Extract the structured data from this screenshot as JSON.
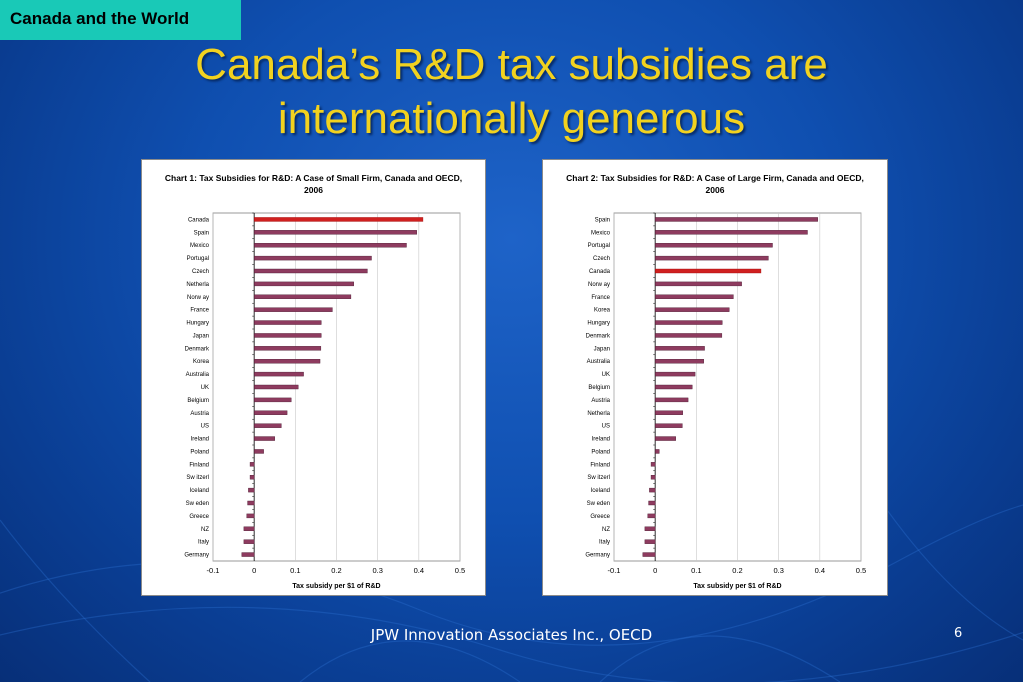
{
  "header": {
    "tag": "Canada and the World"
  },
  "slide": {
    "title_line1": "Canada’s R&D tax subsidies are",
    "title_line2": "internationally generous",
    "footer": "JPW Innovation Associates Inc., OECD",
    "page_number": "6"
  },
  "colors": {
    "bar": "#8e3b5f",
    "highlight": "#d0201f",
    "title": "#f2d21f",
    "tag_bg": "#19c9b7"
  },
  "chart_data": [
    {
      "type": "bar",
      "orientation": "horizontal",
      "title": "Chart 1: Tax Subsidies for R&D: A Case of Small Firm, Canada and OECD, 2006",
      "xlabel": "Tax subsidy per $1 of R&D",
      "xlim": [
        -0.1,
        0.5
      ],
      "xticks": [
        "-0.1",
        "0",
        "0.1",
        "0.2",
        "0.3",
        "0.4",
        "0.5"
      ],
      "grid": true,
      "highlight": "Canada",
      "categories": [
        "Canada",
        "Spain",
        "Mexico",
        "Portugal",
        "Czech",
        "Netherla",
        "Norw ay",
        "France",
        "Hungary",
        "Japan",
        "Denmark",
        "Korea",
        "Australia",
        "UK",
        "Belgium",
        "Austria",
        "US",
        "Ireland",
        "Poland",
        "Finland",
        "Sw itzerl",
        "Iceland",
        "Sw eden",
        "Greece",
        "NZ",
        "Italy",
        "Germany"
      ],
      "values": [
        0.41,
        0.395,
        0.37,
        0.285,
        0.275,
        0.242,
        0.235,
        0.19,
        0.163,
        0.163,
        0.162,
        0.16,
        0.12,
        0.107,
        0.09,
        0.08,
        0.066,
        0.05,
        0.023,
        -0.01,
        -0.01,
        -0.014,
        -0.016,
        -0.018,
        -0.025,
        -0.025,
        -0.03
      ]
    },
    {
      "type": "bar",
      "orientation": "horizontal",
      "title": "Chart 2: Tax Subsidies for R&D: A Case of Large Firm, Canada and OECD, 2006",
      "xlabel": "Tax subsidy per $1 of R&D",
      "xlim": [
        -0.1,
        0.5
      ],
      "xticks": [
        "-0.1",
        "0",
        "0.1",
        "0.2",
        "0.3",
        "0.4",
        "0.5"
      ],
      "grid": true,
      "highlight": "Canada",
      "categories": [
        "Spain",
        "Mexico",
        "Portugal",
        "Czech",
        "Canada",
        "Norw ay",
        "France",
        "Korea",
        "Hungary",
        "Denmark",
        "Japan",
        "Australia",
        "UK",
        "Belgium",
        "Austria",
        "Netherla",
        "US",
        "Ireland",
        "Poland",
        "Finland",
        "Sw itzerl",
        "Iceland",
        "Sw eden",
        "Greece",
        "NZ",
        "Italy",
        "Germany"
      ],
      "values": [
        0.395,
        0.37,
        0.285,
        0.275,
        0.257,
        0.21,
        0.19,
        0.18,
        0.163,
        0.162,
        0.12,
        0.118,
        0.097,
        0.09,
        0.08,
        0.067,
        0.066,
        0.05,
        0.01,
        -0.01,
        -0.01,
        -0.014,
        -0.016,
        -0.018,
        -0.025,
        -0.025,
        -0.03
      ]
    }
  ]
}
